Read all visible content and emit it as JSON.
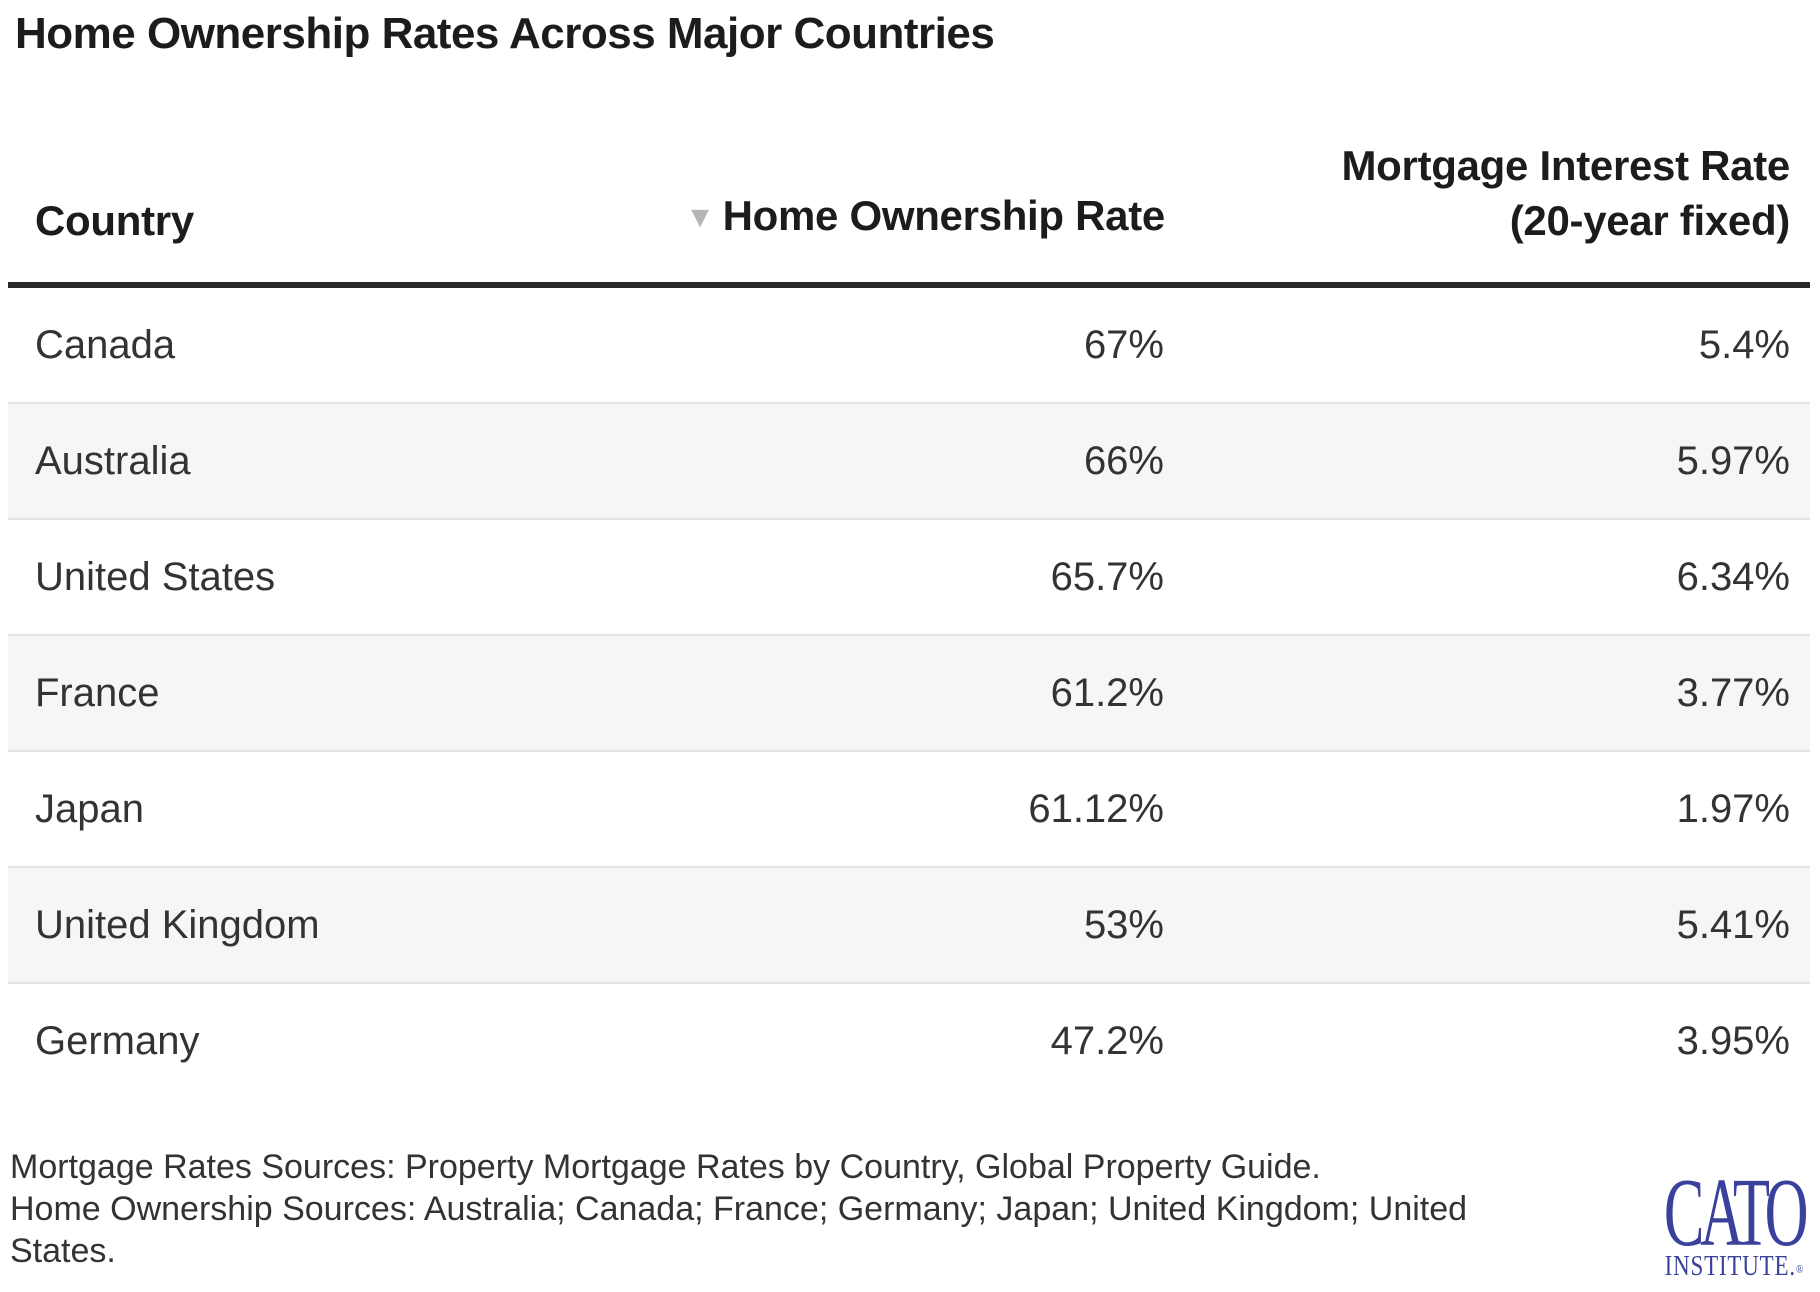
{
  "title": "Home Ownership Rates Across Major Countries",
  "table": {
    "sort_indicator": "▼",
    "headers": {
      "country": "Country",
      "ownership": "Home Ownership Rate",
      "mortgage_line1": "Mortgage Interest Rate",
      "mortgage_line2": "(20-year fixed)"
    },
    "rows": [
      {
        "country": "Canada",
        "ownership": "67%",
        "mortgage": "5.4%"
      },
      {
        "country": "Australia",
        "ownership": "66%",
        "mortgage": "5.97%"
      },
      {
        "country": "United States",
        "ownership": "65.7%",
        "mortgage": "6.34%"
      },
      {
        "country": "France",
        "ownership": "61.2%",
        "mortgage": "3.77%"
      },
      {
        "country": "Japan",
        "ownership": "61.12%",
        "mortgage": "1.97%"
      },
      {
        "country": "United Kingdom",
        "ownership": "53%",
        "mortgage": "5.41%"
      },
      {
        "country": "Germany",
        "ownership": "47.2%",
        "mortgage": "3.95%"
      }
    ]
  },
  "notes": {
    "line1": "Mortgage Rates Sources: Property Mortgage Rates by Country, Global Property Guide.",
    "line2": "Home Ownership Sources: Australia; Canada; France; Germany; Japan; United Kingdom; United",
    "line3": "States."
  },
  "logo": {
    "name": "CATO",
    "subtitle": "INSTITUTE.",
    "registered": "®"
  },
  "colors": {
    "logo_blue": "#3a419c",
    "stripe": "#f5f6f6",
    "row_divider": "#e4e4e4",
    "header_rule": "#282828",
    "heading_text": "#1c1c1c",
    "body_text": "#333333",
    "sort_arrow": "#b5b5b5"
  },
  "chart_data": {
    "type": "table",
    "title": "Home Ownership Rates Across Major Countries",
    "columns": [
      "Country",
      "Home Ownership Rate",
      "Mortgage Interest Rate (20-year fixed)"
    ],
    "sorted_by": "Home Ownership Rate (descending)",
    "rows": [
      [
        "Canada",
        "67%",
        "5.4%"
      ],
      [
        "Australia",
        "66%",
        "5.97%"
      ],
      [
        "United States",
        "65.7%",
        "6.34%"
      ],
      [
        "France",
        "61.2%",
        "3.77%"
      ],
      [
        "Japan",
        "61.12%",
        "1.97%"
      ],
      [
        "United Kingdom",
        "53%",
        "5.41%"
      ],
      [
        "Germany",
        "47.2%",
        "3.95%"
      ]
    ],
    "notes": "Mortgage Rates Sources: Property Mortgage Rates by Country, Global Property Guide. Home Ownership Sources: Australia; Canada; France; Germany; Japan; United Kingdom; United States.",
    "source_logo": "CATO INSTITUTE"
  }
}
